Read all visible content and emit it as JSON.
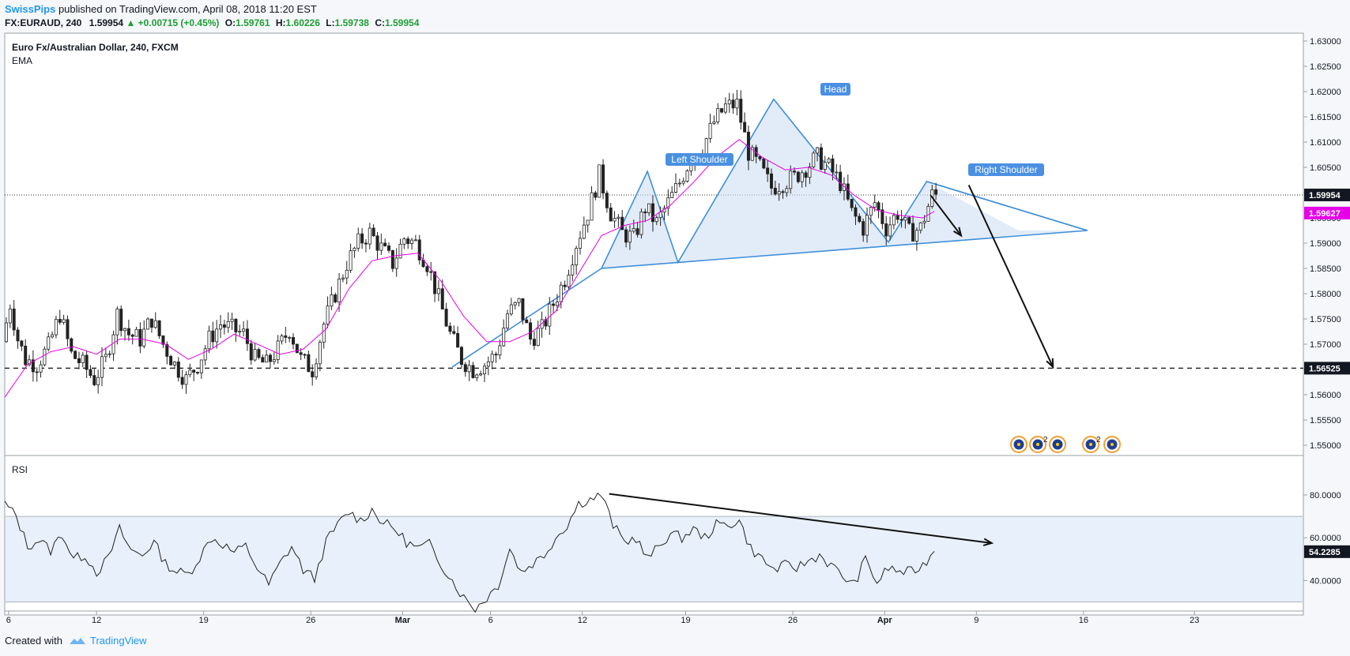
{
  "header": {
    "publisher": "SwissPips",
    "published_text": "published on TradingView.com, April 08, 2018 11:20 EST",
    "symbol": "FX:EURAUD, 240",
    "price": "1.59954",
    "change": "+0.00715 (+0.45%)",
    "open_label": "O:",
    "open": "1.59761",
    "high_label": "H:",
    "high": "1.60226",
    "low_label": "L:",
    "low": "1.59738",
    "close_label": "C:",
    "close": "1.59954"
  },
  "footer": {
    "created_with": "Created with",
    "brand": "TradingView"
  },
  "colors": {
    "up_candle": "#ffffff",
    "down_candle": "#222222",
    "ema": "#e600e6",
    "pattern_fill": "#cfe0f5",
    "pattern_line": "#3f8fd9",
    "rsi_band": "#e8f0fb"
  },
  "chart_data": [
    {
      "type": "candlestick",
      "title": "Euro Fx/Australian Dollar, 240, FXCM",
      "indicator": "EMA",
      "ylim": [
        1.545,
        1.632
      ],
      "y_ticks": [
        "1.63000",
        "1.62500",
        "1.62000",
        "1.61500",
        "1.61000",
        "1.60500",
        "1.60000",
        "1.59500",
        "1.59000",
        "1.58500",
        "1.58000",
        "1.57500",
        "1.57000",
        "1.56500",
        "1.56000",
        "1.55500",
        "1.55000"
      ],
      "x_ticks": [
        "6",
        "12",
        "19",
        "26",
        "Mar",
        "6",
        "12",
        "19",
        "26",
        "Apr",
        "9",
        "16",
        "23"
      ],
      "last_price_label": "1.59954",
      "ema_label": "1.59627",
      "support_label": "1.56525",
      "last_price": 1.59954,
      "ema_value": 1.59627,
      "support": 1.56525,
      "pattern_labels": [
        "Left Shoulder",
        "Head",
        "Right Shoulder"
      ],
      "events": {
        "badge_count_1": "2",
        "badge_count_2": "2"
      },
      "close_series": [
        {
          "t": 0,
          "c": 1.5705
        },
        {
          "t": 2,
          "c": 1.578
        },
        {
          "t": 4,
          "c": 1.571
        },
        {
          "t": 6,
          "c": 1.567
        },
        {
          "t": 9,
          "c": 1.566
        },
        {
          "t": 12,
          "c": 1.5695
        },
        {
          "t": 15,
          "c": 1.576
        },
        {
          "t": 18,
          "c": 1.568
        },
        {
          "t": 21,
          "c": 1.566
        },
        {
          "t": 24,
          "c": 1.563
        },
        {
          "t": 27,
          "c": 1.567
        },
        {
          "t": 30,
          "c": 1.576
        },
        {
          "t": 33,
          "c": 1.572
        },
        {
          "t": 36,
          "c": 1.571
        },
        {
          "t": 39,
          "c": 1.575
        },
        {
          "t": 42,
          "c": 1.57
        },
        {
          "t": 45,
          "c": 1.566
        },
        {
          "t": 48,
          "c": 1.563
        },
        {
          "t": 51,
          "c": 1.566
        },
        {
          "t": 54,
          "c": 1.571
        },
        {
          "t": 57,
          "c": 1.574
        },
        {
          "t": 60,
          "c": 1.573
        },
        {
          "t": 63,
          "c": 1.572
        },
        {
          "t": 66,
          "c": 1.567
        },
        {
          "t": 69,
          "c": 1.566
        },
        {
          "t": 72,
          "c": 1.569
        },
        {
          "t": 75,
          "c": 1.573
        },
        {
          "t": 78,
          "c": 1.567
        },
        {
          "t": 81,
          "c": 1.565
        },
        {
          "t": 84,
          "c": 1.574
        },
        {
          "t": 87,
          "c": 1.58
        },
        {
          "t": 90,
          "c": 1.586
        },
        {
          "t": 93,
          "c": 1.59
        },
        {
          "t": 96,
          "c": 1.592
        },
        {
          "t": 99,
          "c": 1.589
        },
        {
          "t": 102,
          "c": 1.586
        },
        {
          "t": 105,
          "c": 1.591
        },
        {
          "t": 108,
          "c": 1.59
        },
        {
          "t": 111,
          "c": 1.586
        },
        {
          "t": 114,
          "c": 1.579
        },
        {
          "t": 117,
          "c": 1.572
        },
        {
          "t": 120,
          "c": 1.567
        },
        {
          "t": 123,
          "c": 1.565
        },
        {
          "t": 126,
          "c": 1.566
        },
        {
          "t": 129,
          "c": 1.568
        },
        {
          "t": 132,
          "c": 1.576
        },
        {
          "t": 135,
          "c": 1.578
        },
        {
          "t": 138,
          "c": 1.571
        },
        {
          "t": 141,
          "c": 1.573
        },
        {
          "t": 144,
          "c": 1.578
        },
        {
          "t": 147,
          "c": 1.583
        },
        {
          "t": 150,
          "c": 1.59
        },
        {
          "t": 153,
          "c": 1.596
        },
        {
          "t": 156,
          "c": 1.6035
        },
        {
          "t": 159,
          "c": 1.596
        },
        {
          "t": 162,
          "c": 1.592
        },
        {
          "t": 165,
          "c": 1.591
        },
        {
          "t": 168,
          "c": 1.597
        },
        {
          "t": 171,
          "c": 1.594
        },
        {
          "t": 174,
          "c": 1.598
        },
        {
          "t": 177,
          "c": 1.602
        },
        {
          "t": 180,
          "c": 1.607
        },
        {
          "t": 183,
          "c": 1.609
        },
        {
          "t": 186,
          "c": 1.614
        },
        {
          "t": 189,
          "c": 1.617
        },
        {
          "t": 192,
          "c": 1.6175
        },
        {
          "t": 195,
          "c": 1.608
        },
        {
          "t": 198,
          "c": 1.605
        },
        {
          "t": 201,
          "c": 1.601
        },
        {
          "t": 204,
          "c": 1.602
        },
        {
          "t": 207,
          "c": 1.603
        },
        {
          "t": 210,
          "c": 1.605
        },
        {
          "t": 213,
          "c": 1.607
        },
        {
          "t": 216,
          "c": 1.605
        },
        {
          "t": 219,
          "c": 1.602
        },
        {
          "t": 222,
          "c": 1.596
        },
        {
          "t": 225,
          "c": 1.593
        },
        {
          "t": 228,
          "c": 1.598
        },
        {
          "t": 231,
          "c": 1.593
        },
        {
          "t": 234,
          "c": 1.596
        },
        {
          "t": 237,
          "c": 1.592
        },
        {
          "t": 240,
          "c": 1.593
        },
        {
          "t": 243,
          "c": 1.5995
        }
      ],
      "ema_series": [
        {
          "t": 0,
          "c": 1.5595
        },
        {
          "t": 6,
          "c": 1.566
        },
        {
          "t": 12,
          "c": 1.5685
        },
        {
          "t": 18,
          "c": 1.5695
        },
        {
          "t": 24,
          "c": 1.568
        },
        {
          "t": 30,
          "c": 1.571
        },
        {
          "t": 36,
          "c": 1.571
        },
        {
          "t": 42,
          "c": 1.57
        },
        {
          "t": 48,
          "c": 1.567
        },
        {
          "t": 54,
          "c": 1.569
        },
        {
          "t": 60,
          "c": 1.572
        },
        {
          "t": 66,
          "c": 1.57
        },
        {
          "t": 72,
          "c": 1.568
        },
        {
          "t": 78,
          "c": 1.569
        },
        {
          "t": 84,
          "c": 1.573
        },
        {
          "t": 90,
          "c": 1.581
        },
        {
          "t": 96,
          "c": 1.5865
        },
        {
          "t": 102,
          "c": 1.5875
        },
        {
          "t": 108,
          "c": 1.588
        },
        {
          "t": 114,
          "c": 1.5825
        },
        {
          "t": 120,
          "c": 1.5755
        },
        {
          "t": 126,
          "c": 1.5705
        },
        {
          "t": 132,
          "c": 1.5705
        },
        {
          "t": 138,
          "c": 1.5725
        },
        {
          "t": 144,
          "c": 1.5765
        },
        {
          "t": 150,
          "c": 1.584
        },
        {
          "t": 156,
          "c": 1.5915
        },
        {
          "t": 162,
          "c": 1.5935
        },
        {
          "t": 168,
          "c": 1.5945
        },
        {
          "t": 174,
          "c": 1.5975
        },
        {
          "t": 180,
          "c": 1.602
        },
        {
          "t": 186,
          "c": 1.607
        },
        {
          "t": 192,
          "c": 1.6105
        },
        {
          "t": 198,
          "c": 1.607
        },
        {
          "t": 204,
          "c": 1.6045
        },
        {
          "t": 210,
          "c": 1.605
        },
        {
          "t": 216,
          "c": 1.6035
        },
        {
          "t": 222,
          "c": 1.5995
        },
        {
          "t": 228,
          "c": 1.5965
        },
        {
          "t": 234,
          "c": 1.5955
        },
        {
          "t": 240,
          "c": 1.595
        },
        {
          "t": 243,
          "c": 1.5963
        }
      ]
    },
    {
      "type": "line",
      "title": "RSI",
      "ylim": [
        25,
        90
      ],
      "y_ticks": [
        "80.0000",
        "60.0000",
        "40.0000"
      ],
      "band": [
        30,
        70
      ],
      "last_label": "54.2285",
      "last_value": 54.2285,
      "series": [
        {
          "t": 0,
          "v": 76
        },
        {
          "t": 3,
          "v": 70
        },
        {
          "t": 6,
          "v": 56
        },
        {
          "t": 9,
          "v": 59
        },
        {
          "t": 12,
          "v": 54
        },
        {
          "t": 15,
          "v": 62
        },
        {
          "t": 18,
          "v": 50
        },
        {
          "t": 21,
          "v": 52
        },
        {
          "t": 24,
          "v": 44
        },
        {
          "t": 27,
          "v": 50
        },
        {
          "t": 30,
          "v": 64
        },
        {
          "t": 33,
          "v": 54
        },
        {
          "t": 36,
          "v": 52
        },
        {
          "t": 39,
          "v": 58
        },
        {
          "t": 42,
          "v": 48
        },
        {
          "t": 45,
          "v": 44
        },
        {
          "t": 48,
          "v": 43
        },
        {
          "t": 51,
          "v": 51
        },
        {
          "t": 54,
          "v": 60
        },
        {
          "t": 57,
          "v": 57
        },
        {
          "t": 60,
          "v": 53
        },
        {
          "t": 63,
          "v": 56
        },
        {
          "t": 66,
          "v": 46
        },
        {
          "t": 69,
          "v": 38
        },
        {
          "t": 72,
          "v": 48
        },
        {
          "t": 75,
          "v": 56
        },
        {
          "t": 78,
          "v": 45
        },
        {
          "t": 81,
          "v": 41
        },
        {
          "t": 84,
          "v": 58
        },
        {
          "t": 87,
          "v": 66
        },
        {
          "t": 90,
          "v": 72
        },
        {
          "t": 93,
          "v": 68
        },
        {
          "t": 96,
          "v": 73
        },
        {
          "t": 99,
          "v": 67
        },
        {
          "t": 102,
          "v": 64
        },
        {
          "t": 105,
          "v": 58
        },
        {
          "t": 108,
          "v": 55
        },
        {
          "t": 111,
          "v": 57
        },
        {
          "t": 114,
          "v": 48
        },
        {
          "t": 117,
          "v": 40
        },
        {
          "t": 120,
          "v": 32
        },
        {
          "t": 123,
          "v": 27
        },
        {
          "t": 126,
          "v": 32
        },
        {
          "t": 129,
          "v": 38
        },
        {
          "t": 132,
          "v": 55
        },
        {
          "t": 135,
          "v": 44
        },
        {
          "t": 138,
          "v": 48
        },
        {
          "t": 141,
          "v": 52
        },
        {
          "t": 144,
          "v": 60
        },
        {
          "t": 147,
          "v": 66
        },
        {
          "t": 150,
          "v": 76
        },
        {
          "t": 153,
          "v": 78
        },
        {
          "t": 156,
          "v": 80
        },
        {
          "t": 159,
          "v": 66
        },
        {
          "t": 162,
          "v": 58
        },
        {
          "t": 165,
          "v": 60
        },
        {
          "t": 168,
          "v": 50
        },
        {
          "t": 171,
          "v": 56
        },
        {
          "t": 174,
          "v": 62
        },
        {
          "t": 177,
          "v": 60
        },
        {
          "t": 180,
          "v": 64
        },
        {
          "t": 183,
          "v": 60
        },
        {
          "t": 186,
          "v": 66
        },
        {
          "t": 189,
          "v": 66
        },
        {
          "t": 192,
          "v": 68
        },
        {
          "t": 195,
          "v": 55
        },
        {
          "t": 198,
          "v": 50
        },
        {
          "t": 201,
          "v": 45
        },
        {
          "t": 204,
          "v": 47
        },
        {
          "t": 207,
          "v": 46
        },
        {
          "t": 210,
          "v": 49
        },
        {
          "t": 213,
          "v": 52
        },
        {
          "t": 216,
          "v": 47
        },
        {
          "t": 219,
          "v": 42
        },
        {
          "t": 222,
          "v": 38
        },
        {
          "t": 225,
          "v": 50
        },
        {
          "t": 228,
          "v": 39
        },
        {
          "t": 231,
          "v": 46
        },
        {
          "t": 234,
          "v": 44
        },
        {
          "t": 237,
          "v": 44
        },
        {
          "t": 240,
          "v": 47
        },
        {
          "t": 243,
          "v": 54.2
        }
      ]
    }
  ]
}
